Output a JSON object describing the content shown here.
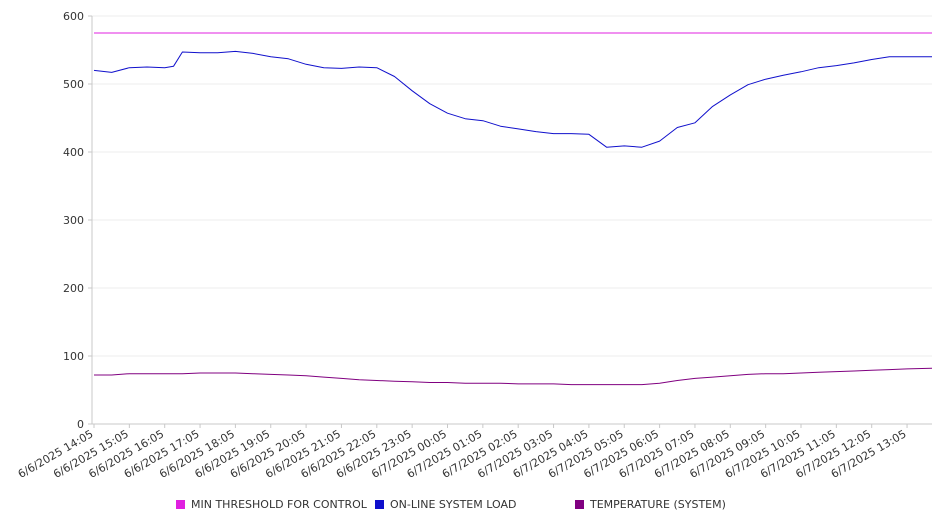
{
  "chart_data": {
    "type": "line",
    "ylim": [
      0,
      600
    ],
    "y_ticks": [
      0,
      100,
      200,
      300,
      400,
      500,
      600
    ],
    "x_tick_labels": [
      "6/6/2025 14:05",
      "6/6/2025 15:05",
      "6/6/2025 16:05",
      "6/6/2025 17:05",
      "6/6/2025 18:05",
      "6/6/2025 19:05",
      "6/6/2025 20:05",
      "6/6/2025 21:05",
      "6/6/2025 22:05",
      "6/6/2025 23:05",
      "6/7/2025 00:05",
      "6/7/2025 01:05",
      "6/7/2025 02:05",
      "6/7/2025 03:05",
      "6/7/2025 04:05",
      "6/7/2025 05:05",
      "6/7/2025 06:05",
      "6/7/2025 07:05",
      "6/7/2025 08:05",
      "6/7/2025 09:05",
      "6/7/2025 10:05",
      "6/7/2025 11:05",
      "6/7/2025 12:05",
      "6/7/2025 13:05"
    ],
    "x": [
      "6/6/2025 14:05",
      "6/6/2025 14:35",
      "6/6/2025 15:05",
      "6/6/2025 15:35",
      "6/6/2025 16:05",
      "6/6/2025 16:20",
      "6/6/2025 16:35",
      "6/6/2025 17:05",
      "6/6/2025 17:35",
      "6/6/2025 18:05",
      "6/6/2025 18:35",
      "6/6/2025 19:05",
      "6/6/2025 19:35",
      "6/6/2025 20:05",
      "6/6/2025 20:35",
      "6/6/2025 21:05",
      "6/6/2025 21:35",
      "6/6/2025 22:05",
      "6/6/2025 22:35",
      "6/6/2025 23:05",
      "6/6/2025 23:35",
      "6/7/2025 00:05",
      "6/7/2025 00:35",
      "6/7/2025 01:05",
      "6/7/2025 01:35",
      "6/7/2025 02:05",
      "6/7/2025 02:35",
      "6/7/2025 03:05",
      "6/7/2025 03:35",
      "6/7/2025 04:05",
      "6/7/2025 04:35",
      "6/7/2025 05:05",
      "6/7/2025 05:35",
      "6/7/2025 06:05",
      "6/7/2025 06:35",
      "6/7/2025 07:05",
      "6/7/2025 07:35",
      "6/7/2025 08:05",
      "6/7/2025 08:35",
      "6/7/2025 09:05",
      "6/7/2025 09:35",
      "6/7/2025 10:05",
      "6/7/2025 10:35",
      "6/7/2025 11:05",
      "6/7/2025 11:35",
      "6/7/2025 12:05",
      "6/7/2025 12:35",
      "6/7/2025 13:05",
      "6/7/2025 13:35"
    ],
    "series": [
      {
        "name": "MIN THRESHOLD FOR CONTROL",
        "color": "#e020e0",
        "values": [
          575,
          575,
          575,
          575,
          575,
          575,
          575,
          575,
          575,
          575,
          575,
          575,
          575,
          575,
          575,
          575,
          575,
          575,
          575,
          575,
          575,
          575,
          575,
          575,
          575,
          575,
          575,
          575,
          575,
          575,
          575,
          575,
          575,
          575,
          575,
          575,
          575,
          575,
          575,
          575,
          575,
          575,
          575,
          575,
          575,
          575,
          575,
          575,
          575
        ]
      },
      {
        "name": "ON-LINE SYSTEM LOAD",
        "color": "#1010cc",
        "values": [
          520,
          517,
          524,
          525,
          524,
          526,
          547,
          546,
          546,
          548,
          545,
          540,
          537,
          529,
          524,
          523,
          525,
          524,
          511,
          490,
          471,
          457,
          449,
          446,
          438,
          434,
          430,
          427,
          427,
          426,
          407,
          409,
          407,
          416,
          436,
          443,
          467,
          484,
          499,
          507,
          513,
          518,
          524,
          527,
          531,
          536,
          540,
          540,
          540
        ]
      },
      {
        "name": "TEMPERATURE (SYSTEM)",
        "color": "#800080",
        "values": [
          72,
          72,
          74,
          74,
          74,
          74,
          74,
          75,
          75,
          75,
          74,
          73,
          72,
          71,
          69,
          67,
          65,
          64,
          63,
          62,
          61,
          61,
          60,
          60,
          60,
          59,
          59,
          59,
          58,
          58,
          58,
          58,
          58,
          60,
          64,
          67,
          69,
          71,
          73,
          74,
          74,
          75,
          76,
          77,
          78,
          79,
          80,
          81,
          82
        ]
      }
    ]
  }
}
